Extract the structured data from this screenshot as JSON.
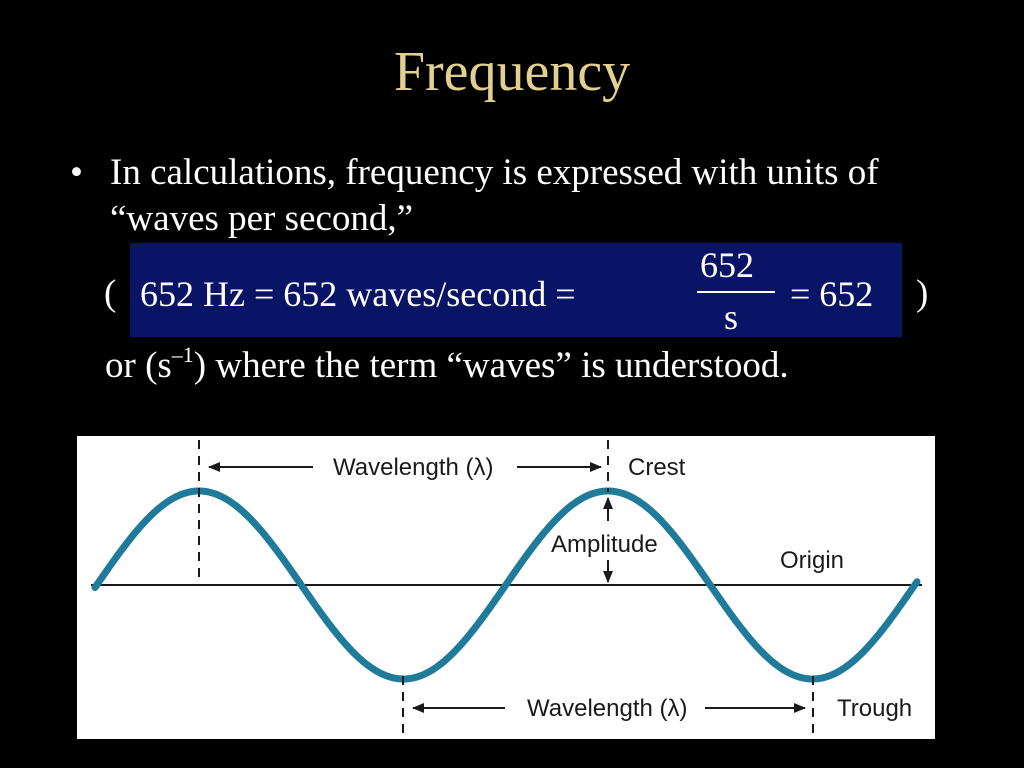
{
  "slide": {
    "title": "Frequency",
    "bullet": "In calculations, frequency is expressed with units of “waves per second,”",
    "open_paren": "(",
    "close_paren": ")",
    "formula": {
      "left": "652 Hz = 652 waves/second =",
      "numerator": "652",
      "denominator": "s",
      "right": "= 652"
    },
    "or_line": {
      "prefix": "or (s",
      "exponent": "–1",
      "suffix": ") where the term “waves” is understood."
    }
  },
  "diagram": {
    "labels": {
      "wavelength_top": "Wavelength (λ)",
      "crest": "Crest",
      "amplitude": "Amplitude",
      "origin": "Origin",
      "wavelength_bottom": "Wavelength (λ)",
      "trough": "Trough"
    },
    "colors": {
      "wave": "#1f7b99",
      "panel": "#ffffff",
      "formula_bg": "#0a1466",
      "title": "#e3cf8f"
    }
  }
}
